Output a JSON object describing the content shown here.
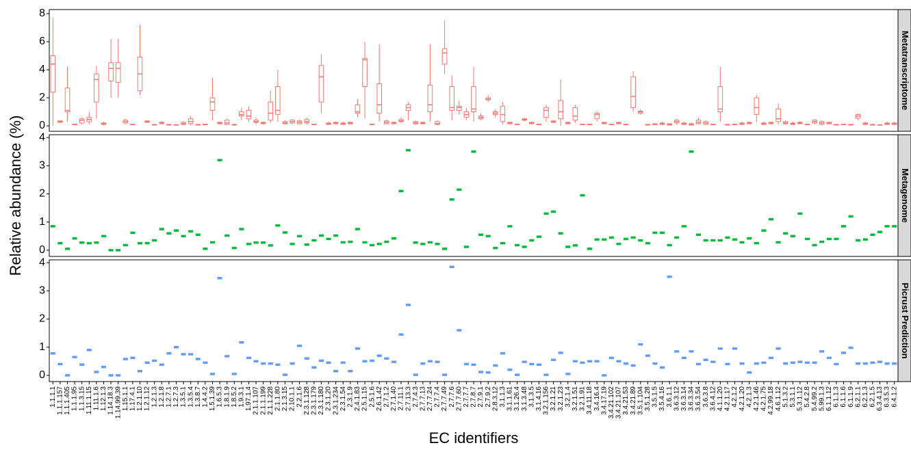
{
  "chart_data": {
    "type": "box",
    "x_label": "EC identifiers",
    "y_label": "Relative abundance (%)",
    "categories": [
      "1.1.1.1",
      "1.1.1.157",
      "1.1.1.405",
      "1.1.1.95",
      "1.1.3.15",
      "1.11.1.15",
      "1.11.1.6",
      "1.12.1.3",
      "1.14.18.3",
      "1.14.99.39",
      "1.15.1.1",
      "1.17.4.1",
      "1.2.1.10",
      "1.2.1.12",
      "1.2.1.3",
      "1.2.1.8",
      "1.2.7.1",
      "1.2.7.3",
      "1.3.5.1",
      "1.3.5.4",
      "1.3.8.7",
      "1.4.4.2",
      "1.5.1.39",
      "1.6.5.3",
      "1.8.1.9",
      "1.8.5.2",
      "1.9.3.1",
      "1.97.1.4",
      "2.1.1.107",
      "2.1.1.199",
      "2.1.1.228",
      "2.1.1.80",
      "2.1.3.15",
      "2.10.1.1",
      "2.2.1.6",
      "2.3.1.128",
      "2.3.1.179",
      "2.3.1.180",
      "2.3.1.20",
      "2.3.1.234",
      "2.3.1.54",
      "2.3.1.9",
      "2.4.1.83",
      "2.5.1.15",
      "2.5.1.6",
      "2.6.1.42",
      "2.7.1.2",
      "2.7.1.40",
      "2.7.11.1",
      "2.7.13.3",
      "2.7.4.3",
      "2.7.7.13",
      "2.7.7.24",
      "2.7.7.4",
      "2.7.7.49",
      "2.7.7.6",
      "2.7.7.60",
      "2.7.7.7",
      "2.7.8.7",
      "2.7.9.1",
      "2.7.9.2",
      "2.8.3.12",
      "3.1.1.3",
      "3.1.1.61",
      "3.1.26.4",
      "3.1.3.48",
      "3.1.3.5",
      "3.1.4.16",
      "3.2.1.156",
      "3.2.1.21",
      "3.2.1.23",
      "3.2.1.4",
      "3.2.1.51",
      "3.2.1.91",
      "3.4.11.18",
      "3.4.16.4",
      "3.4.17.19",
      "3.4.21.102",
      "3.4.21.107",
      "3.4.21.53",
      "3.4.21.89",
      "3.5.1.104",
      "3.5.1.28",
      "3.5.1.5",
      "3.5.4.16",
      "3.6.1.1",
      "3.6.3.12",
      "3.6.3.14",
      "3.6.3.34",
      "3.6.3.54",
      "3.6.3.8",
      "3.6.4.12",
      "4.1.1.20",
      "4.2.1.17",
      "4.2.1.2",
      "4.2.1.20",
      "4.2.1.3",
      "4.2.1.46",
      "4.2.1.75",
      "4.2.99.18",
      "4.6.1.12",
      "5.1.3.2",
      "5.3.1.1",
      "5.3.1.12",
      "5.4.2.8",
      "5.4.99.2",
      "5.99.1.3",
      "6.1.1.12",
      "6.1.1.3",
      "6.1.1.6",
      "6.1.1.9",
      "6.2.1.1",
      "6.2.1.3",
      "6.2.1.5",
      "6.3.4.13",
      "6.3.5.3",
      "6.4.1.2"
    ],
    "series": [
      {
        "name": "Metatranscriptome",
        "color": "#F8766D",
        "ylim": [
          -0.39,
          8.29
        ],
        "yticks": [
          0,
          2,
          4,
          6,
          8
        ],
        "boxes": [
          [
            0,
            2.4,
            4.4,
            5.0,
            7.7
          ],
          [
            0.2,
            0.25,
            0.3,
            0.35,
            0.4
          ],
          [
            0.3,
            1.0,
            1.1,
            2.7,
            4.2
          ],
          [
            0.05,
            0.08,
            0.1,
            0.12,
            0.15
          ],
          [
            0.1,
            0.2,
            0.4,
            0.5,
            0.6
          ],
          [
            0.1,
            0.3,
            0.45,
            0.6,
            1.0
          ],
          [
            0.5,
            1.7,
            3.3,
            3.7,
            4.3
          ],
          [
            0.05,
            0.1,
            0.15,
            0.2,
            0.3
          ],
          [
            2.0,
            3.2,
            4.1,
            4.5,
            6.2
          ],
          [
            2.0,
            3.1,
            4.1,
            4.5,
            6.2
          ],
          [
            0.1,
            0.2,
            0.3,
            0.4,
            0.5
          ],
          [
            0.05,
            0.08,
            0.1,
            0.12,
            0.15
          ],
          [
            2.2,
            2.5,
            3.7,
            4.9,
            7.2
          ],
          [
            0.2,
            0.25,
            0.3,
            0.35,
            0.4
          ],
          [
            0.02,
            0.05,
            0.08,
            0.1,
            0.15
          ],
          [
            0.1,
            0.15,
            0.2,
            0.25,
            0.35
          ],
          [
            0.02,
            0.05,
            0.08,
            0.1,
            0.15
          ],
          [
            0.02,
            0.04,
            0.06,
            0.08,
            0.12
          ],
          [
            0.05,
            0.1,
            0.15,
            0.25,
            0.35
          ],
          [
            0.05,
            0.15,
            0.3,
            0.5,
            0.7
          ],
          [
            0.02,
            0.05,
            0.08,
            0.1,
            0.15
          ],
          [
            0.05,
            0.07,
            0.1,
            0.12,
            0.15
          ],
          [
            0.4,
            1.1,
            1.7,
            2.0,
            3.4
          ],
          [
            0.1,
            0.15,
            0.2,
            0.25,
            0.3
          ],
          [
            0.05,
            0.1,
            0.2,
            0.4,
            0.5
          ],
          [
            0.02,
            0.05,
            0.08,
            0.1,
            0.15
          ],
          [
            0.4,
            0.7,
            0.8,
            1.0,
            1.3
          ],
          [
            0.3,
            0.5,
            0.7,
            1.1,
            1.4
          ],
          [
            0.1,
            0.25,
            0.3,
            0.4,
            0.6
          ],
          [
            0.1,
            0.15,
            0.2,
            0.25,
            0.3
          ],
          [
            0.2,
            0.4,
            0.9,
            1.7,
            2.5
          ],
          [
            0.3,
            0.8,
            1.1,
            2.8,
            4.0
          ],
          [
            0.1,
            0.15,
            0.2,
            0.3,
            0.4
          ],
          [
            0.1,
            0.2,
            0.3,
            0.4,
            0.5
          ],
          [
            0.1,
            0.15,
            0.25,
            0.35,
            0.45
          ],
          [
            0.1,
            0.2,
            0.3,
            0.45,
            0.6
          ],
          [
            0.05,
            0.08,
            0.1,
            0.12,
            0.15
          ],
          [
            0.9,
            1.7,
            3.5,
            4.3,
            5.1
          ],
          [
            0.05,
            0.1,
            0.15,
            0.2,
            0.3
          ],
          [
            0.1,
            0.15,
            0.2,
            0.25,
            0.3
          ],
          [
            0.05,
            0.1,
            0.15,
            0.2,
            0.3
          ],
          [
            0.1,
            0.15,
            0.2,
            0.25,
            0.3
          ],
          [
            0.6,
            0.9,
            1.0,
            1.5,
            1.9
          ],
          [
            0.5,
            2.8,
            4.7,
            4.8,
            6.0
          ],
          [
            0.05,
            0.08,
            0.1,
            0.12,
            0.15
          ],
          [
            0.3,
            0.9,
            1.5,
            3.0,
            5.8
          ],
          [
            0.1,
            0.15,
            0.25,
            0.35,
            0.45
          ],
          [
            0.1,
            0.15,
            0.2,
            0.25,
            0.3
          ],
          [
            0.2,
            0.3,
            0.35,
            0.45,
            0.6
          ],
          [
            0.4,
            1.1,
            1.3,
            1.5,
            1.7
          ],
          [
            0.1,
            0.15,
            0.2,
            0.3,
            0.4
          ],
          [
            0.1,
            0.15,
            0.2,
            0.25,
            0.3
          ],
          [
            0.3,
            1.0,
            1.5,
            2.9,
            5.8
          ],
          [
            0.05,
            0.1,
            0.15,
            0.3,
            0.4
          ],
          [
            3.7,
            4.4,
            5.2,
            5.5,
            7.5
          ],
          [
            0.4,
            1.1,
            1.3,
            2.8,
            3.6
          ],
          [
            0.8,
            1.1,
            1.3,
            1.4,
            1.8
          ],
          [
            0.4,
            0.6,
            0.8,
            1.0,
            1.3
          ],
          [
            0.3,
            1.0,
            1.2,
            2.8,
            4.2
          ],
          [
            0.4,
            0.5,
            0.6,
            0.7,
            0.9
          ],
          [
            1.7,
            1.85,
            1.9,
            2.0,
            2.2
          ],
          [
            0.6,
            0.8,
            0.9,
            1.0,
            1.2
          ],
          [
            0.1,
            0.3,
            0.8,
            1.4,
            1.7
          ],
          [
            0.1,
            0.15,
            0.2,
            0.25,
            0.3
          ],
          [
            0.05,
            0.08,
            0.1,
            0.12,
            0.15
          ],
          [
            0.3,
            0.4,
            0.45,
            0.5,
            0.6
          ],
          [
            0.1,
            0.15,
            0.2,
            0.25,
            0.3
          ],
          [
            0.05,
            0.08,
            0.1,
            0.12,
            0.15
          ],
          [
            0.3,
            0.6,
            1.1,
            1.3,
            1.5
          ],
          [
            0.2,
            0.25,
            0.3,
            0.35,
            0.4
          ],
          [
            0,
            0.5,
            1.0,
            1.8,
            3.3
          ],
          [
            0.1,
            0.15,
            0.2,
            0.25,
            0.3
          ],
          [
            0.2,
            0.4,
            0.7,
            1.3,
            1.5
          ],
          [
            0.05,
            0.08,
            0.1,
            0.12,
            0.15
          ],
          [
            0.05,
            0.08,
            0.1,
            0.12,
            0.15
          ],
          [
            0.3,
            0.5,
            0.8,
            0.9,
            1.0
          ],
          [
            0.1,
            0.15,
            0.2,
            0.25,
            0.3
          ],
          [
            0.05,
            0.08,
            0.1,
            0.12,
            0.15
          ],
          [
            0.1,
            0.15,
            0.2,
            0.25,
            0.3
          ],
          [
            0.05,
            0.08,
            0.1,
            0.12,
            0.15
          ],
          [
            1.0,
            1.3,
            2.1,
            3.5,
            3.9
          ],
          [
            0.8,
            0.9,
            1.0,
            1.05,
            1.2
          ],
          [
            0.02,
            0.05,
            0.08,
            0.1,
            0.15
          ],
          [
            0.05,
            0.08,
            0.12,
            0.15,
            0.2
          ],
          [
            0.05,
            0.1,
            0.15,
            0.2,
            0.3
          ],
          [
            0.02,
            0.05,
            0.1,
            0.15,
            0.2
          ],
          [
            0.1,
            0.2,
            0.3,
            0.4,
            0.5
          ],
          [
            0.05,
            0.1,
            0.15,
            0.2,
            0.3
          ],
          [
            0.02,
            0.05,
            0.1,
            0.15,
            0.25
          ],
          [
            0.1,
            0.15,
            0.25,
            0.4,
            0.6
          ],
          [
            0.05,
            0.1,
            0.2,
            0.3,
            0.4
          ],
          [
            0.05,
            0.08,
            0.1,
            0.12,
            0.15
          ],
          [
            0.3,
            1.0,
            1.2,
            2.8,
            4.2
          ],
          [
            0.02,
            0.05,
            0.08,
            0.1,
            0.15
          ],
          [
            0.05,
            0.08,
            0.1,
            0.12,
            0.15
          ],
          [
            0.05,
            0.1,
            0.15,
            0.2,
            0.3
          ],
          [
            0.1,
            0.15,
            0.2,
            0.25,
            0.3
          ],
          [
            0.3,
            0.8,
            1.3,
            2.0,
            2.2
          ],
          [
            0.05,
            0.1,
            0.15,
            0.2,
            0.3
          ],
          [
            0.1,
            0.15,
            0.2,
            0.25,
            0.3
          ],
          [
            0.1,
            0.3,
            0.5,
            1.2,
            1.6
          ],
          [
            0.1,
            0.15,
            0.2,
            0.3,
            0.4
          ],
          [
            0.05,
            0.1,
            0.15,
            0.2,
            0.3
          ],
          [
            0.1,
            0.15,
            0.2,
            0.25,
            0.35
          ],
          [
            0.05,
            0.08,
            0.1,
            0.12,
            0.15
          ],
          [
            0.1,
            0.2,
            0.3,
            0.4,
            0.5
          ],
          [
            0.05,
            0.1,
            0.2,
            0.3,
            0.4
          ],
          [
            0.1,
            0.15,
            0.2,
            0.25,
            0.3
          ],
          [
            0.02,
            0.05,
            0.08,
            0.1,
            0.15
          ],
          [
            0.05,
            0.08,
            0.1,
            0.12,
            0.15
          ],
          [
            0.02,
            0.05,
            0.08,
            0.1,
            0.15
          ],
          [
            0.4,
            0.55,
            0.7,
            0.8,
            0.9
          ],
          [
            0.05,
            0.1,
            0.15,
            0.2,
            0.3
          ],
          [
            0.02,
            0.05,
            0.08,
            0.1,
            0.15
          ],
          [
            0.02,
            0.04,
            0.06,
            0.08,
            0.1
          ],
          [
            0.05,
            0.1,
            0.15,
            0.2,
            0.3
          ],
          [
            0.05,
            0.1,
            0.15,
            0.2,
            0.3
          ]
        ]
      },
      {
        "name": "Metagenome",
        "color": "#00BA38",
        "ylim": [
          -0.22,
          4.1
        ],
        "yticks": [
          0,
          1,
          2,
          3,
          4
        ],
        "values": [
          0.85,
          0.25,
          0.05,
          0.42,
          0.27,
          0.25,
          0.27,
          0.5,
          0.0,
          0.0,
          0.18,
          0.62,
          0.25,
          0.25,
          0.35,
          0.75,
          0.6,
          0.7,
          0.5,
          0.67,
          0.55,
          0.05,
          0.28,
          3.2,
          0.52,
          0.08,
          0.75,
          0.22,
          0.27,
          0.27,
          0.17,
          0.88,
          0.63,
          0.22,
          0.5,
          0.2,
          0.35,
          0.52,
          0.4,
          0.52,
          0.28,
          0.3,
          0.75,
          0.28,
          0.18,
          0.22,
          0.3,
          0.42,
          2.1,
          3.55,
          0.27,
          0.22,
          0.28,
          0.22,
          0.05,
          1.8,
          2.15,
          0.12,
          3.5,
          0.55,
          0.5,
          0.08,
          0.25,
          0.85,
          0.18,
          0.12,
          0.35,
          0.48,
          1.3,
          1.37,
          0.6,
          0.12,
          0.17,
          1.95,
          0.05,
          0.38,
          0.38,
          0.45,
          0.22,
          0.4,
          0.45,
          0.35,
          0.25,
          0.62,
          0.62,
          0.18,
          0.45,
          0.85,
          3.5,
          0.55,
          0.35,
          0.35,
          0.35,
          0.45,
          0.38,
          0.28,
          0.42,
          0.25,
          0.7,
          1.1,
          0.28,
          0.6,
          0.5,
          1.3,
          0.4,
          0.18,
          0.3,
          0.4,
          0.4,
          0.85,
          1.2,
          0.35,
          0.38,
          0.55,
          0.65,
          0.85,
          0.85
        ]
      },
      {
        "name": "Picrust Prediction",
        "color": "#619CFF",
        "ylim": [
          -0.22,
          4.1
        ],
        "yticks": [
          0,
          1,
          2,
          3,
          4
        ],
        "values": [
          0.78,
          0.4,
          0.0,
          0.65,
          0.38,
          0.9,
          0.12,
          0.3,
          0.0,
          0.0,
          0.58,
          0.62,
          0.15,
          0.45,
          0.52,
          0.38,
          0.78,
          1.0,
          0.75,
          0.75,
          0.58,
          0.45,
          0.05,
          3.45,
          0.68,
          0.05,
          1.17,
          0.62,
          0.5,
          0.42,
          0.42,
          0.38,
          0.02,
          0.42,
          1.05,
          0.6,
          0.28,
          0.52,
          0.45,
          0.15,
          0.45,
          0.15,
          0.95,
          0.5,
          0.52,
          0.7,
          0.6,
          0.48,
          1.45,
          2.5,
          0.02,
          0.42,
          0.5,
          0.48,
          0.02,
          3.85,
          1.6,
          0.4,
          0.38,
          0.12,
          0.1,
          0.35,
          0.78,
          0.2,
          0.02,
          0.48,
          0.4,
          0.38,
          0.02,
          0.55,
          0.8,
          0.05,
          0.5,
          0.45,
          0.5,
          0.5,
          0.0,
          0.62,
          0.5,
          0.42,
          0.35,
          1.1,
          0.7,
          0.42,
          0.28,
          3.5,
          0.85,
          0.62,
          0.85,
          0.4,
          0.55,
          0.48,
          0.95,
          0.4,
          0.95,
          0.42,
          0.1,
          0.42,
          0.45,
          0.62,
          0.95,
          0.42,
          0.45,
          0.48,
          0.45,
          0.45,
          0.85,
          0.62,
          0.4,
          0.8,
          0.98,
          0.42,
          0.42,
          0.45,
          0.48,
          0.42,
          0.42
        ]
      }
    ]
  }
}
